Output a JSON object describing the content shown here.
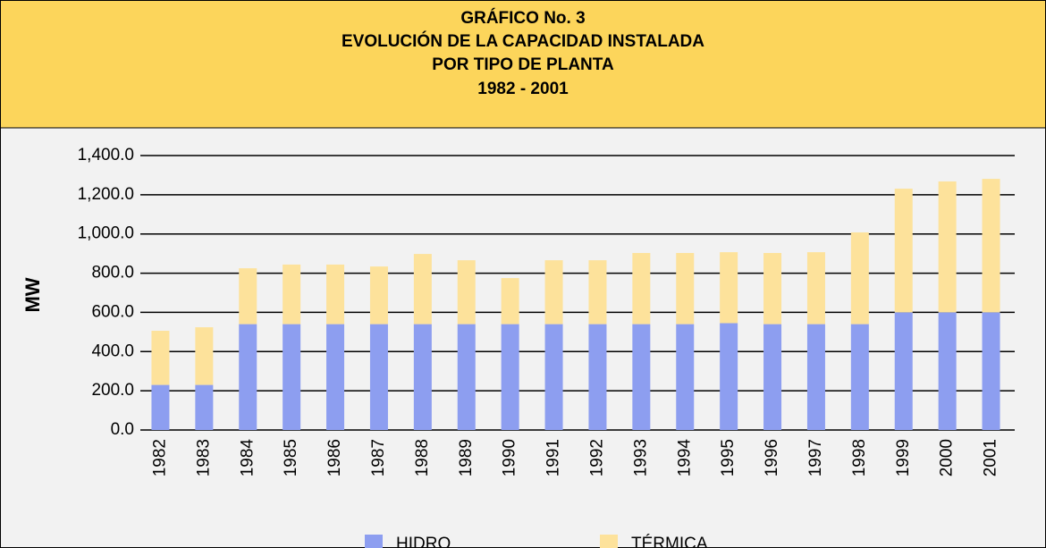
{
  "chart_data": {
    "type": "stacked_bar",
    "title": [
      "GRÁFICO No. 3",
      "EVOLUCIÓN DE LA CAPACIDAD INSTALADA",
      "POR TIPO DE PLANTA",
      "1982 - 2001"
    ],
    "y_label": "MW",
    "categories": [
      "1982",
      "1983",
      "1984",
      "1985",
      "1986",
      "1987",
      "1988",
      "1989",
      "1990",
      "1991",
      "1992",
      "1993",
      "1994",
      "1995",
      "1996",
      "1997",
      "1998",
      "1999",
      "2000",
      "2001"
    ],
    "series": [
      {
        "name": "HIDRO",
        "color": "#8d9ef0",
        "values": [
          230,
          230,
          540,
          540,
          540,
          540,
          540,
          540,
          540,
          540,
          540,
          540,
          540,
          545,
          540,
          540,
          540,
          600,
          600,
          600
        ]
      },
      {
        "name": "TÉRMICA",
        "color": "#fde29b",
        "values": [
          276,
          294,
          285,
          304,
          304,
          294,
          358,
          326,
          235,
          326,
          326,
          363,
          363,
          362,
          363,
          367,
          468,
          631,
          668,
          681
        ]
      }
    ],
    "ylim": [
      0,
      1400
    ],
    "yticks": [
      {
        "value": 0,
        "label": "0.0"
      },
      {
        "value": 200,
        "label": "200.0"
      },
      {
        "value": 400,
        "label": "400.0"
      },
      {
        "value": 600,
        "label": "600.0"
      },
      {
        "value": 800,
        "label": "800.0"
      },
      {
        "value": 1000,
        "label": "1,000.0"
      },
      {
        "value": 1200,
        "label": "1,200.0"
      },
      {
        "value": 1400,
        "label": "1,400.0"
      }
    ],
    "grid": true,
    "legend": "bottom"
  }
}
